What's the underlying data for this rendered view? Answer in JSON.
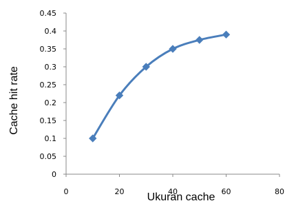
{
  "chart_data": {
    "type": "line",
    "title": "",
    "xlabel": "Ukuran cache",
    "ylabel": "Cache hit rate",
    "xlim": [
      0,
      80
    ],
    "ylim": [
      0,
      0.45
    ],
    "x_ticks": [
      0,
      20,
      40,
      60,
      80
    ],
    "x_tick_labels": [
      "0",
      "20",
      "40",
      "60",
      "80"
    ],
    "y_ticks": [
      0,
      0.05,
      0.1,
      0.15,
      0.2,
      0.25,
      0.3,
      0.35,
      0.4,
      0.45
    ],
    "y_tick_labels": [
      "0",
      "0.05",
      "0.1",
      "0.15",
      "0.2",
      "0.25",
      "0.3",
      "0.35",
      "0.4",
      "0.45"
    ],
    "grid": false,
    "legend": "none",
    "series": [
      {
        "x": [
          10,
          20,
          30,
          40,
          50,
          60
        ],
        "y": [
          0.1,
          0.22,
          0.3,
          0.35,
          0.375,
          0.39
        ],
        "marker": "diamond",
        "smooth": true
      }
    ],
    "colors": {
      "series": "#4a7ebb",
      "axis": "#888888",
      "text": "#000000"
    }
  }
}
